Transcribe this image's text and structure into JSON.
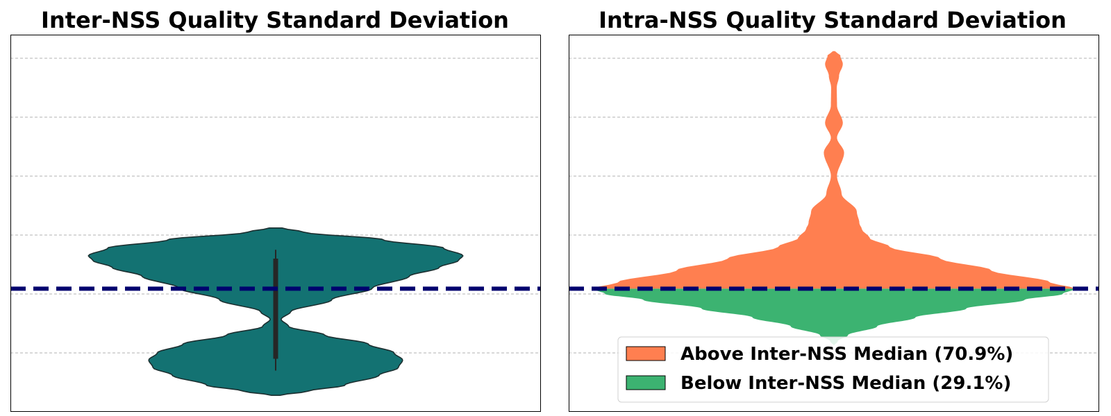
{
  "chart_data": [
    {
      "type": "violin",
      "title": "Inter-NSS Quality Standard Deviation",
      "xlabel": "",
      "ylabel": "",
      "ylim": [
        0.0,
        6.4
      ],
      "gridlines": [
        1,
        2,
        3,
        4,
        5,
        6
      ],
      "median_line": 2.09,
      "violin_color": "#137272",
      "edge_color": "#1c2f30",
      "median_line_color": "#00006e",
      "box": {
        "q1": 0.9,
        "q3": 2.6,
        "whisker_low": 0.7,
        "whisker_high": 2.75,
        "median": 2.09
      },
      "density_profile": [
        [
          0.28,
          0.02
        ],
        [
          0.35,
          0.15
        ],
        [
          0.45,
          0.32
        ],
        [
          0.62,
          0.48
        ],
        [
          0.75,
          0.57
        ],
        [
          0.88,
          0.59
        ],
        [
          1.0,
          0.55
        ],
        [
          1.15,
          0.43
        ],
        [
          1.3,
          0.23
        ],
        [
          1.45,
          0.06
        ],
        [
          1.57,
          0.025
        ],
        [
          1.7,
          0.07
        ],
        [
          1.9,
          0.26
        ],
        [
          2.1,
          0.45
        ],
        [
          2.3,
          0.62
        ],
        [
          2.45,
          0.76
        ],
        [
          2.57,
          0.85
        ],
        [
          2.65,
          0.87
        ],
        [
          2.78,
          0.78
        ],
        [
          2.92,
          0.5
        ],
        [
          3.05,
          0.13
        ],
        [
          3.12,
          0.03
        ]
      ]
    },
    {
      "type": "violin",
      "title": "Intra-NSS Quality Standard Deviation",
      "xlabel": "",
      "ylabel": "",
      "ylim": [
        0.0,
        6.4
      ],
      "gridlines": [
        1,
        2,
        3,
        4,
        5,
        6
      ],
      "median_line": 2.09,
      "median_line_color": "#00006e",
      "split_at": 2.09,
      "above_color": "#ff7f50",
      "below_color": "#3cb371",
      "density_profile": [
        [
          1.12,
          0.0
        ],
        [
          1.2,
          0.015
        ],
        [
          1.3,
          0.055
        ],
        [
          1.45,
          0.17
        ],
        [
          1.6,
          0.32
        ],
        [
          1.75,
          0.52
        ],
        [
          1.9,
          0.75
        ],
        [
          2.0,
          0.9
        ],
        [
          2.09,
          0.95
        ],
        [
          2.2,
          0.85
        ],
        [
          2.4,
          0.62
        ],
        [
          2.6,
          0.42
        ],
        [
          2.8,
          0.22
        ],
        [
          2.95,
          0.14
        ],
        [
          3.1,
          0.11
        ],
        [
          3.2,
          0.1
        ],
        [
          3.4,
          0.09
        ],
        [
          3.7,
          0.03
        ],
        [
          4.0,
          0.012
        ],
        [
          4.4,
          0.04
        ],
        [
          4.65,
          0.012
        ],
        [
          4.9,
          0.035
        ],
        [
          5.2,
          0.012
        ],
        [
          5.5,
          0.011
        ],
        [
          5.7,
          0.02
        ],
        [
          5.9,
          0.035
        ],
        [
          6.05,
          0.025
        ],
        [
          6.12,
          0.004
        ]
      ],
      "legend": {
        "position": "lower-center",
        "entries": [
          {
            "label": "Above Inter-NSS Median (70.9%)",
            "color": "#ff7f50"
          },
          {
            "label": "Below Inter-NSS Median (29.1%)",
            "color": "#3cb371"
          }
        ]
      }
    }
  ]
}
